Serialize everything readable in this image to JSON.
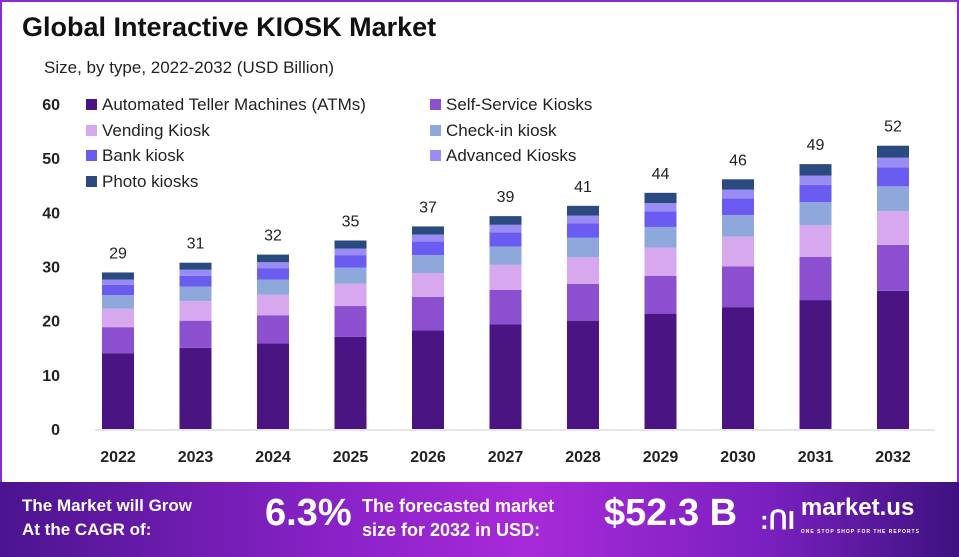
{
  "chart_data": {
    "type": "bar",
    "stacked": true,
    "title": "Global Interactive KIOSK Market",
    "subtitle": "Size, by type, 2022-2032 (USD Billion)",
    "categories": [
      "2022",
      "2023",
      "2024",
      "2025",
      "2026",
      "2027",
      "2028",
      "2029",
      "2030",
      "2031",
      "2032"
    ],
    "ylim": [
      0,
      60
    ],
    "yticks": [
      0,
      10,
      20,
      30,
      40,
      50,
      60
    ],
    "grid": false,
    "legend_placement": "top-left",
    "totals_labels": [
      "29",
      "31",
      "32",
      "35",
      "37",
      "39",
      "41",
      "44",
      "46",
      "49",
      "52"
    ],
    "series": [
      {
        "name": "Automated Teller Machines (ATMs)",
        "color": "#4a1582",
        "values": [
          14,
          15,
          15.8,
          17,
          18.2,
          19.3,
          20,
          21.3,
          22.5,
          23.8,
          25.5
        ]
      },
      {
        "name": "Self-Service Kiosks",
        "color": "#8b4fd0",
        "values": [
          4.8,
          5,
          5.2,
          5.7,
          6.2,
          6.4,
          6.8,
          7,
          7.5,
          8,
          8.5
        ]
      },
      {
        "name": "Vending Kiosk",
        "color": "#d7a8ee",
        "values": [
          3.4,
          3.6,
          3.8,
          4.1,
          4.4,
          4.6,
          4.9,
          5.2,
          5.5,
          5.8,
          6.2
        ]
      },
      {
        "name": "Check-in kiosk",
        "color": "#8fa8dc",
        "values": [
          2.5,
          2.7,
          2.8,
          3.0,
          3.3,
          3.4,
          3.6,
          3.8,
          4.0,
          4.3,
          4.6
        ]
      },
      {
        "name": "Bank kiosk",
        "color": "#6a5cf0",
        "values": [
          1.9,
          2.0,
          2.1,
          2.3,
          2.5,
          2.6,
          2.7,
          2.9,
          3.1,
          3.2,
          3.5
        ]
      },
      {
        "name": "Advanced Kiosks",
        "color": "#9a8cf5",
        "values": [
          1.0,
          1.1,
          1.1,
          1.2,
          1.3,
          1.4,
          1.4,
          1.5,
          1.6,
          1.7,
          1.8
        ]
      },
      {
        "name": "Photo kiosks",
        "color": "#2a4a80",
        "values": [
          1.3,
          1.3,
          1.4,
          1.5,
          1.5,
          1.6,
          1.8,
          1.9,
          1.9,
          2.1,
          2.2
        ]
      }
    ]
  },
  "footer": {
    "cagr_text_1": "The Market will Grow",
    "cagr_text_2": "At the CAGR of:",
    "cagr_value": "6.3%",
    "forecast_text_1": "The forecasted market",
    "forecast_text_2": "size for 2032 in USD:",
    "forecast_value": "$52.3 B",
    "logo_text": "market.us",
    "logo_tagline": "ONE STOP SHOP FOR THE REPORTS"
  }
}
